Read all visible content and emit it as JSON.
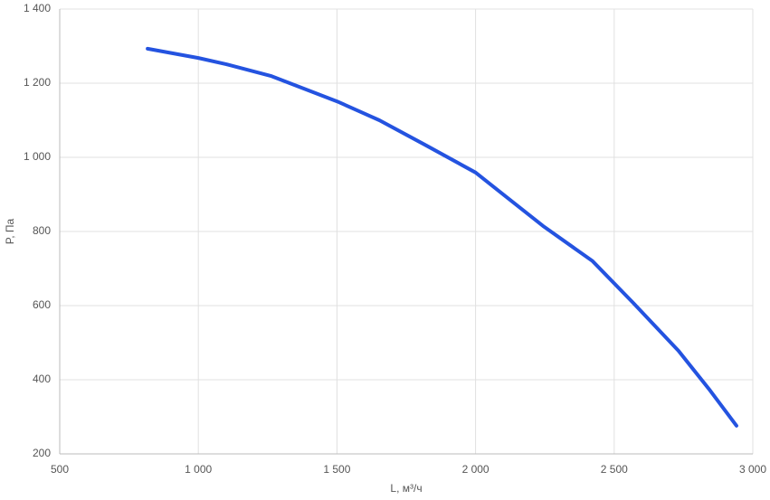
{
  "chart_data": {
    "type": "line",
    "x_label": "L, м³/ч",
    "y_label": "P, Па",
    "x": [
      817,
      1000,
      1101,
      1264,
      1500,
      1653,
      1817,
      2000,
      2111,
      2243,
      2422,
      2569,
      2732,
      2846,
      2941
    ],
    "series": [
      {
        "name": "P",
        "color": "#2453e0",
        "values": [
          1293,
          1268,
          1251,
          1219,
          1151,
          1100,
          1034,
          959,
          893,
          815,
          720,
          607,
          478,
          371,
          276
        ]
      }
    ],
    "xlim": [
      500,
      3000
    ],
    "xticks": [
      500,
      {
        "value": 1000,
        "label": "1 000"
      },
      {
        "value": 1500,
        "label": "1 500"
      },
      {
        "value": 2000,
        "label": "2 000"
      },
      {
        "value": 2500,
        "label": "2 500"
      },
      {
        "value": 3000,
        "label": "3 000"
      }
    ],
    "ylim": [
      200,
      1400
    ],
    "yticks": [
      200,
      400,
      600,
      800,
      {
        "value": 1000,
        "label": "1 000"
      },
      {
        "value": 1200,
        "label": "1 200"
      },
      {
        "value": 1400,
        "label": "1 400"
      }
    ],
    "grid": true
  }
}
